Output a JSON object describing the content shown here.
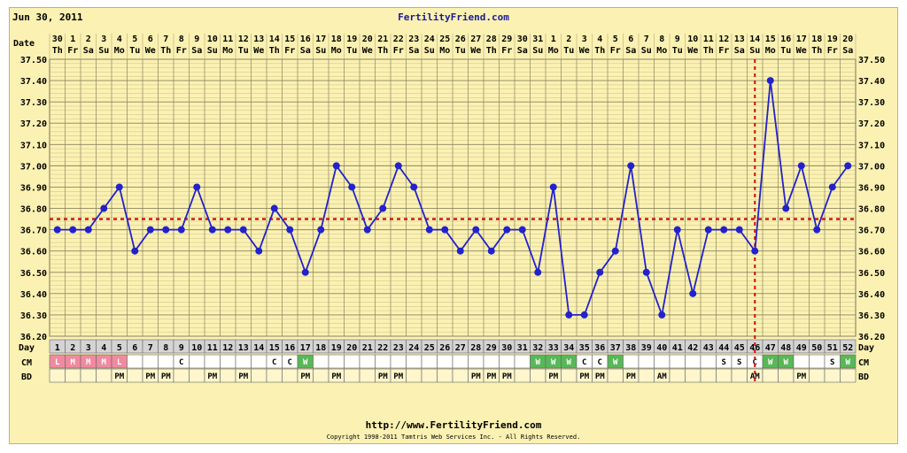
{
  "header": {
    "date": "Jun 30, 2011",
    "site": "FertilityFriend.com"
  },
  "footer": {
    "url": "http://www.FertilityFriend.com",
    "copyright": "Copyright 1998-2011 Tamtris Web Services Inc. - All Rights Reserved."
  },
  "row_labels": {
    "date": "Date",
    "day": "Day",
    "cm": "CM",
    "bd": "BD"
  },
  "colors": {
    "background": "#fbf1b2",
    "line": "#2222cc",
    "coverline": "#cc1111",
    "cm_pink": "#f08aa0",
    "cm_green": "#58b858",
    "day_cell": "#d4d4d4",
    "bd_cell": "#fff6cc"
  },
  "chart_data": {
    "type": "line",
    "ylim": [
      36.2,
      37.5
    ],
    "yticks": [
      "36.20",
      "36.30",
      "36.40",
      "36.50",
      "36.60",
      "36.70",
      "36.80",
      "36.90",
      "37.00",
      "37.10",
      "37.20",
      "37.30",
      "37.40",
      "37.50"
    ],
    "grid": true,
    "dates": [
      "30",
      "1",
      "2",
      "3",
      "4",
      "5",
      "6",
      "7",
      "8",
      "9",
      "10",
      "11",
      "12",
      "13",
      "14",
      "15",
      "16",
      "17",
      "18",
      "19",
      "20",
      "21",
      "22",
      "23",
      "24",
      "25",
      "26",
      "27",
      "28",
      "29",
      "30",
      "31",
      "1",
      "2",
      "3",
      "4",
      "5",
      "6",
      "7",
      "8",
      "9",
      "10",
      "11",
      "12",
      "13",
      "14",
      "15",
      "16",
      "17",
      "18",
      "19",
      "20"
    ],
    "weekdays": [
      "Th",
      "Fr",
      "Sa",
      "Su",
      "Mo",
      "Tu",
      "We",
      "Th",
      "Fr",
      "Sa",
      "Su",
      "Mo",
      "Tu",
      "We",
      "Th",
      "Fr",
      "Sa",
      "Su",
      "Mo",
      "Tu",
      "We",
      "Th",
      "Fr",
      "Sa",
      "Su",
      "Mo",
      "Tu",
      "We",
      "Th",
      "Fr",
      "Sa",
      "Su",
      "Mo",
      "Tu",
      "We",
      "Th",
      "Fr",
      "Sa",
      "Su",
      "Mo",
      "Tu",
      "We",
      "Th",
      "Fr",
      "Sa",
      "Su",
      "Mo",
      "Tu",
      "We",
      "Th",
      "Fr",
      "Sa"
    ],
    "cycle_days": [
      "1",
      "2",
      "3",
      "4",
      "5",
      "6",
      "7",
      "8",
      "9",
      "10",
      "11",
      "12",
      "13",
      "14",
      "15",
      "16",
      "17",
      "18",
      "19",
      "20",
      "21",
      "22",
      "23",
      "24",
      "25",
      "26",
      "27",
      "28",
      "29",
      "30",
      "31",
      "32",
      "33",
      "34",
      "35",
      "36",
      "37",
      "38",
      "39",
      "40",
      "41",
      "42",
      "43",
      "44",
      "45",
      "46",
      "47",
      "48",
      "49",
      "50",
      "51",
      "52"
    ],
    "temperatures": [
      36.7,
      36.7,
      36.7,
      36.8,
      36.9,
      36.6,
      36.7,
      36.7,
      36.7,
      36.9,
      36.7,
      36.7,
      36.7,
      36.6,
      36.8,
      36.7,
      36.5,
      36.7,
      37.0,
      36.9,
      36.7,
      36.8,
      37.0,
      36.9,
      36.7,
      36.7,
      36.6,
      36.7,
      36.6,
      36.7,
      36.7,
      36.5,
      36.9,
      36.3,
      36.3,
      36.5,
      36.6,
      37.0,
      36.5,
      36.3,
      36.7,
      36.4,
      36.7,
      36.7,
      36.7,
      36.6,
      37.4,
      36.8,
      37.0,
      36.7,
      36.9,
      37.0
    ],
    "coverline": 36.75,
    "ovulation_day_index": 45,
    "cm": [
      "L",
      "M",
      "M",
      "M",
      "L",
      "",
      "",
      "",
      "C",
      "",
      "",
      "",
      "",
      "",
      "C",
      "C",
      "W",
      "",
      "",
      "",
      "",
      "",
      "",
      "",
      "",
      "",
      "",
      "",
      "",
      "",
      "",
      "W",
      "W",
      "W",
      "C",
      "C",
      "W",
      "",
      "",
      "",
      "",
      "",
      "",
      "S",
      "S",
      "C",
      "W",
      "W",
      "",
      "",
      "S",
      "W"
    ],
    "bd": [
      "",
      "",
      "",
      "",
      "PM",
      "",
      "PM",
      "PM",
      "",
      "",
      "PM",
      "",
      "PM",
      "",
      "",
      "",
      "PM",
      "",
      "PM",
      "",
      "",
      "PM",
      "PM",
      "",
      "",
      "",
      "",
      "PM",
      "PM",
      "PM",
      "",
      "",
      "PM",
      "",
      "PM",
      "PM",
      "",
      "PM",
      "",
      "AM",
      "",
      "",
      "",
      "",
      "",
      "AM",
      "",
      "",
      "PM",
      "",
      "",
      ""
    ]
  }
}
